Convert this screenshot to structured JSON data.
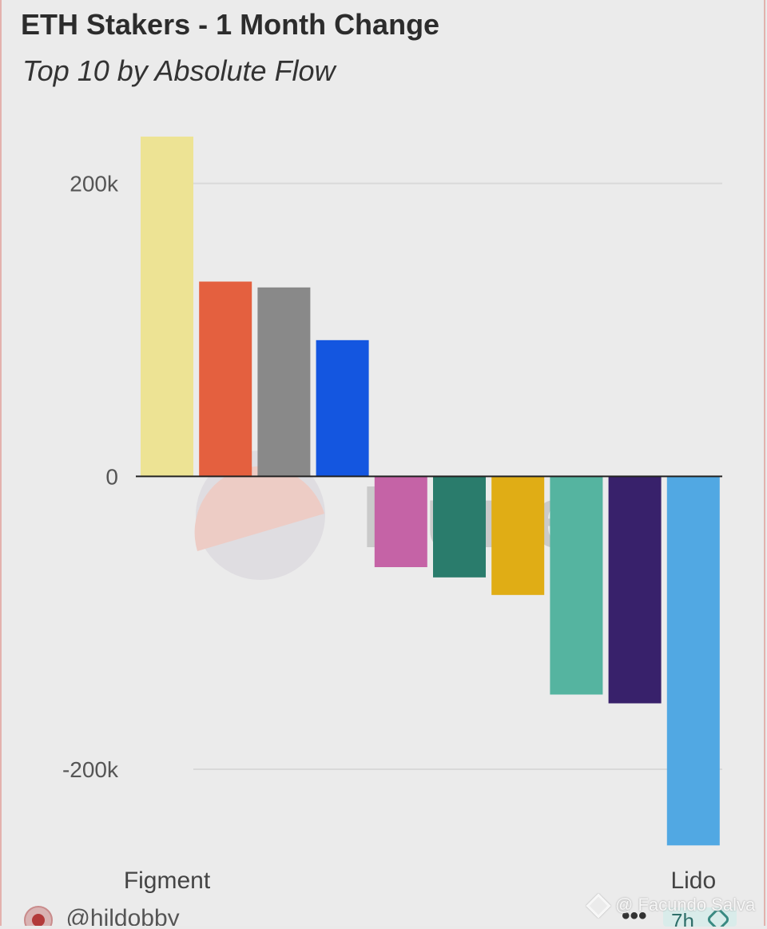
{
  "chart_data": {
    "type": "bar",
    "title": "ETH Stakers - 1 Month Change",
    "subtitle": "Top 10 by Absolute Flow",
    "xlabel": "",
    "ylabel": "",
    "ylim": [
      -254000,
      232000
    ],
    "yticks": [
      {
        "value": 200000,
        "label": "200k"
      },
      {
        "value": 0,
        "label": "0"
      },
      {
        "value": -200000,
        "label": "-200k"
      }
    ],
    "grid": true,
    "legend": "none",
    "visible_category_labels": [
      {
        "index": 0,
        "label": "Figment"
      },
      {
        "index": 9,
        "label": "Lido"
      }
    ],
    "series": [
      {
        "values": [
          232000,
          133000,
          129000,
          93000,
          -62000,
          -69000,
          -81000,
          -149000,
          -155000,
          -252000
        ],
        "colors": [
          "#ede394",
          "#e4603f",
          "#898989",
          "#1456e0",
          "#c563a6",
          "#2a7c6c",
          "#e0ad15",
          "#55b4a0",
          "#38216b",
          "#51a8e3"
        ]
      }
    ]
  },
  "footer": {
    "author": "@hildobby",
    "time": "7h",
    "more": "•••"
  },
  "watermarks": {
    "dune": "Dune",
    "credit": "@ Facundo Salva"
  }
}
